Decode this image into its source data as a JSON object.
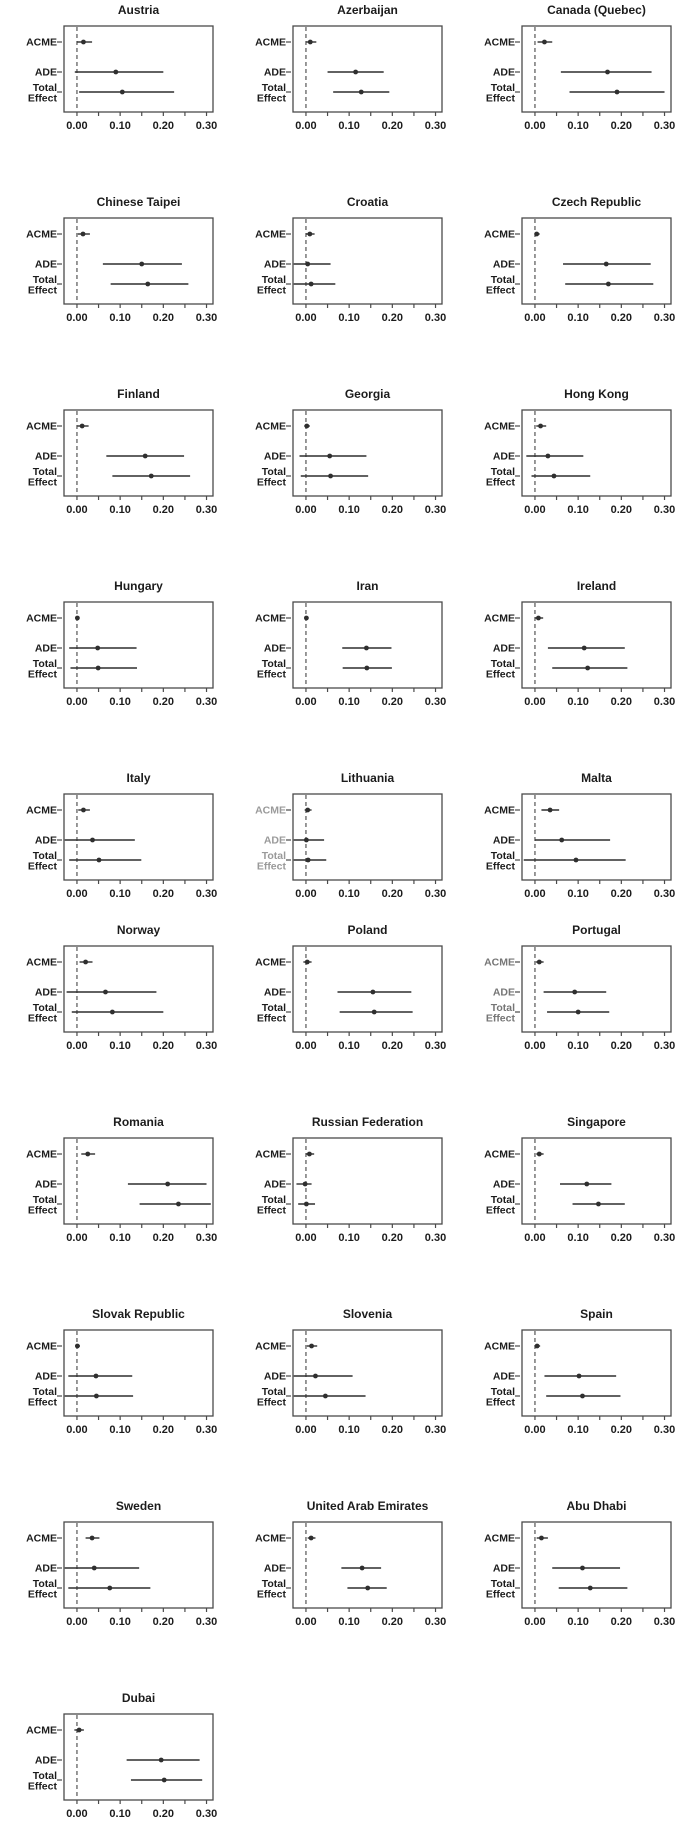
{
  "chart_data": {
    "type": "scatter",
    "variant": "forest-plot-small-multiples",
    "title": "",
    "xlabel": "",
    "ylabel": "",
    "grid": "off",
    "legend": "none",
    "categories": [
      "ACME",
      "ADE",
      "Total Effect"
    ],
    "xlim": [
      -0.03,
      0.315
    ],
    "x_tick_values": [
      0.0,
      0.05,
      0.1,
      0.15,
      0.2,
      0.25,
      0.3
    ],
    "x_tick_labels": [
      "0.00",
      "0.10",
      "0.20",
      "0.30"
    ],
    "reference_line_x": 0,
    "reference_line_style": "dashed",
    "layout": {
      "columns": 3,
      "rows": 10,
      "panels_in_last_row": 1,
      "tight_gap_after_row": 5
    },
    "colors": {
      "stroke": "#2f2f2f",
      "box": "#4a4a4a",
      "text": "#1c1c1c",
      "muted_label": "#9a9a9a",
      "semi_muted_label": "#767676",
      "background": "#ffffff"
    },
    "panels": [
      {
        "title": "Austria",
        "acme": [
          0.015,
          0.0,
          0.035
        ],
        "ade": [
          0.09,
          -0.005,
          0.2
        ],
        "total_effect": [
          0.105,
          0.005,
          0.225
        ]
      },
      {
        "title": "Azerbaijan",
        "acme": [
          0.01,
          0.001,
          0.024
        ],
        "ade": [
          0.115,
          0.05,
          0.18
        ],
        "total_effect": [
          0.128,
          0.063,
          0.193
        ]
      },
      {
        "title": "Canada (Quebec)",
        "acme": [
          0.022,
          0.006,
          0.04
        ],
        "ade": [
          0.168,
          0.06,
          0.27
        ],
        "total_effect": [
          0.19,
          0.08,
          0.3
        ]
      },
      {
        "title": "Chinese Taipei",
        "acme": [
          0.014,
          0.002,
          0.03
        ],
        "ade": [
          0.15,
          0.06,
          0.243
        ],
        "total_effect": [
          0.164,
          0.078,
          0.258
        ]
      },
      {
        "title": "Croatia",
        "acme": [
          0.009,
          0.0,
          0.02
        ],
        "ade": [
          0.004,
          -0.046,
          0.057
        ],
        "total_effect": [
          0.012,
          -0.04,
          0.068
        ]
      },
      {
        "title": "Czech Republic",
        "acme": [
          0.004,
          -0.001,
          0.011
        ],
        "ade": [
          0.165,
          0.065,
          0.268
        ],
        "total_effect": [
          0.17,
          0.07,
          0.274
        ]
      },
      {
        "title": "Finland",
        "acme": [
          0.012,
          0.001,
          0.027
        ],
        "ade": [
          0.158,
          0.068,
          0.248
        ],
        "total_effect": [
          0.172,
          0.082,
          0.262
        ]
      },
      {
        "title": "Georgia",
        "acme": [
          0.002,
          -0.004,
          0.009
        ],
        "ade": [
          0.055,
          -0.015,
          0.14
        ],
        "total_effect": [
          0.057,
          -0.012,
          0.144
        ]
      },
      {
        "title": "Hong Kong",
        "acme": [
          0.013,
          0.003,
          0.026
        ],
        "ade": [
          0.03,
          -0.02,
          0.112
        ],
        "total_effect": [
          0.044,
          -0.008,
          0.128
        ]
      },
      {
        "title": "Hungary",
        "acme": [
          0.001,
          -0.004,
          0.006
        ],
        "ade": [
          0.048,
          -0.018,
          0.138
        ],
        "total_effect": [
          0.049,
          -0.015,
          0.139
        ]
      },
      {
        "title": "Iran",
        "acme": [
          0.001,
          -0.003,
          0.006
        ],
        "ade": [
          0.14,
          0.084,
          0.198
        ],
        "total_effect": [
          0.141,
          0.085,
          0.199
        ]
      },
      {
        "title": "Ireland",
        "acme": [
          0.008,
          0.0,
          0.019
        ],
        "ade": [
          0.114,
          0.03,
          0.208
        ],
        "total_effect": [
          0.122,
          0.04,
          0.214
        ]
      },
      {
        "title": "Italy",
        "acme": [
          0.015,
          0.003,
          0.03
        ],
        "ade": [
          0.036,
          -0.03,
          0.134
        ],
        "total_effect": [
          0.051,
          -0.018,
          0.149
        ]
      },
      {
        "title": "Lithuania",
        "acme": [
          0.004,
          -0.003,
          0.013
        ],
        "ade": [
          0.001,
          -0.048,
          0.042
        ],
        "total_effect": [
          0.005,
          -0.045,
          0.047
        ],
        "label_color": "#9a9a9a"
      },
      {
        "title": "Malta",
        "acme": [
          0.035,
          0.015,
          0.056
        ],
        "ade": [
          0.062,
          0.0,
          0.174
        ],
        "total_effect": [
          0.095,
          -0.026,
          0.21
        ]
      },
      {
        "title": "Norway",
        "acme": [
          0.02,
          0.006,
          0.036
        ],
        "ade": [
          0.066,
          -0.024,
          0.184
        ],
        "total_effect": [
          0.082,
          -0.012,
          0.2
        ]
      },
      {
        "title": "Poland",
        "acme": [
          0.003,
          -0.006,
          0.013
        ],
        "ade": [
          0.155,
          0.073,
          0.244
        ],
        "total_effect": [
          0.158,
          0.078,
          0.247
        ]
      },
      {
        "title": "Portugal",
        "acme": [
          0.01,
          0.002,
          0.02
        ],
        "ade": [
          0.092,
          0.02,
          0.165
        ],
        "total_effect": [
          0.1,
          0.028,
          0.172
        ],
        "label_color": "#767676"
      },
      {
        "title": "Romania",
        "acme": [
          0.025,
          0.01,
          0.042
        ],
        "ade": [
          0.21,
          0.118,
          0.3
        ],
        "total_effect": [
          0.235,
          0.145,
          0.31
        ]
      },
      {
        "title": "Russian Federation",
        "acme": [
          0.008,
          0.0,
          0.019
        ],
        "ade": [
          -0.002,
          -0.022,
          0.013
        ],
        "total_effect": [
          0.001,
          -0.018,
          0.021
        ]
      },
      {
        "title": "Singapore",
        "acme": [
          0.01,
          0.003,
          0.02
        ],
        "ade": [
          0.12,
          0.058,
          0.177
        ],
        "total_effect": [
          0.147,
          0.087,
          0.208
        ]
      },
      {
        "title": "Slovak Republic",
        "acme": [
          0.001,
          -0.004,
          0.007
        ],
        "ade": [
          0.044,
          -0.02,
          0.128
        ],
        "total_effect": [
          0.045,
          -0.04,
          0.13
        ]
      },
      {
        "title": "Slovenia",
        "acme": [
          0.013,
          0.002,
          0.026
        ],
        "ade": [
          0.022,
          -0.03,
          0.108
        ],
        "total_effect": [
          0.045,
          -0.04,
          0.138
        ]
      },
      {
        "title": "Spain",
        "acme": [
          0.005,
          -0.001,
          0.012
        ],
        "ade": [
          0.102,
          0.022,
          0.188
        ],
        "total_effect": [
          0.11,
          0.026,
          0.198
        ]
      },
      {
        "title": "Sweden",
        "acme": [
          0.035,
          0.02,
          0.052
        ],
        "ade": [
          0.04,
          -0.03,
          0.144
        ],
        "total_effect": [
          0.076,
          -0.02,
          0.17
        ]
      },
      {
        "title": "United Arab Emirates",
        "acme": [
          0.012,
          0.004,
          0.022
        ],
        "ade": [
          0.13,
          0.082,
          0.174
        ],
        "total_effect": [
          0.143,
          0.096,
          0.187
        ]
      },
      {
        "title": "Abu Dhabi",
        "acme": [
          0.015,
          0.004,
          0.03
        ],
        "ade": [
          0.11,
          0.04,
          0.197
        ],
        "total_effect": [
          0.128,
          0.055,
          0.214
        ]
      },
      {
        "title": "Dubai",
        "acme": [
          0.005,
          -0.006,
          0.016
        ],
        "ade": [
          0.195,
          0.115,
          0.284
        ],
        "total_effect": [
          0.202,
          0.125,
          0.29
        ]
      }
    ]
  }
}
